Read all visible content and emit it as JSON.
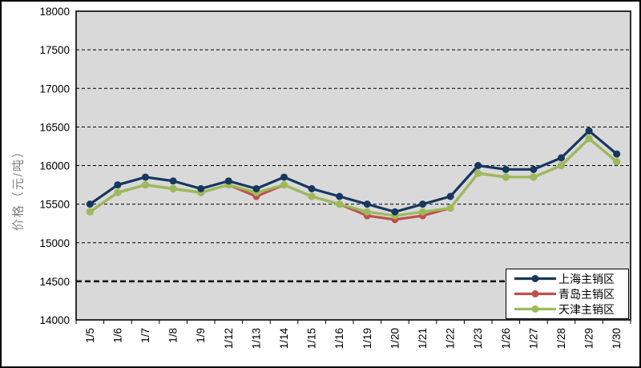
{
  "figure": {
    "background": "#ffffff",
    "border_color": "#000000",
    "plot_background": "#d9d9d9"
  },
  "y_axis_title": "价格（元/吨）",
  "chart_data": {
    "type": "line",
    "title": "",
    "xlabel": "",
    "ylabel": "价格（元/吨）",
    "categories": [
      "1/5",
      "1/6",
      "1/7",
      "1/8",
      "1/9",
      "1/12",
      "1/13",
      "1/14",
      "1/15",
      "1/16",
      "1/19",
      "1/20",
      "1/21",
      "1/22",
      "1/23",
      "1/26",
      "1/27",
      "1/28",
      "1/29",
      "1/30"
    ],
    "series": [
      {
        "name": "上海主销区",
        "color": "#17375E",
        "values": [
          15500,
          15750,
          15850,
          15800,
          15700,
          15800,
          15700,
          15850,
          15700,
          15600,
          15500,
          15400,
          15500,
          15600,
          16000,
          15950,
          15950,
          16100,
          16450,
          16150
        ]
      },
      {
        "name": "青岛主销区",
        "color": "#C0504D",
        "values": [
          15400,
          15650,
          15750,
          15700,
          15650,
          15750,
          15600,
          15750,
          15600,
          15500,
          15350,
          15300,
          15350,
          15450,
          15900,
          15850,
          15850,
          16000,
          16350,
          16050
        ]
      },
      {
        "name": "天津主销区",
        "color": "#9BBB59",
        "values": [
          15400,
          15650,
          15750,
          15700,
          15650,
          15750,
          15650,
          15750,
          15600,
          15500,
          15400,
          15350,
          15400,
          15450,
          15900,
          15850,
          15850,
          16000,
          16350,
          16050
        ]
      }
    ],
    "ylim": [
      14000,
      18000
    ],
    "ytick_step": 500,
    "ytick_labels": [
      "14000",
      "14500",
      "15000",
      "15500",
      "16000",
      "16500",
      "17000",
      "17500",
      "18000"
    ],
    "emphasized_gridline": 14500,
    "grid": "dashed-horizontal",
    "legend_position": "inside-bottom-right",
    "marker": "circle"
  }
}
